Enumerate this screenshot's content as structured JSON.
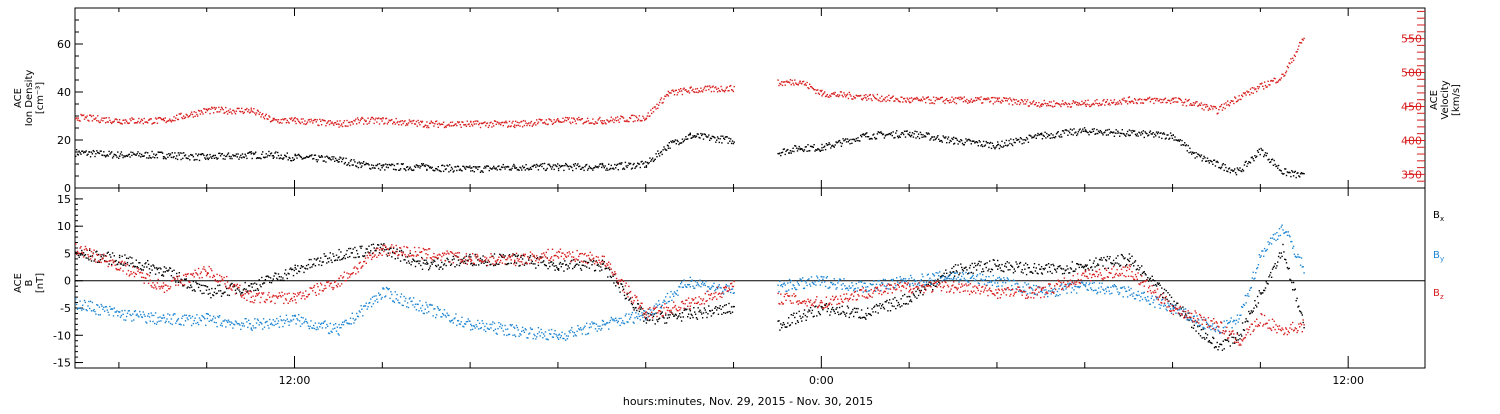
{
  "chart_data": [
    {
      "type": "scatter",
      "panel": "plasma",
      "ylabel_lines": [
        "ACE",
        "Ion Density",
        "[cm⁻³]"
      ],
      "ylabel_right_lines": [
        "ACE",
        "Velocity",
        "[km/s]"
      ],
      "ylim": [
        0,
        75
      ],
      "y_ticks": [
        "0",
        "20",
        "40",
        "60"
      ],
      "y2lim": [
        330,
        595
      ],
      "y2_ticks": [
        "350",
        "400",
        "450",
        "500",
        "550"
      ],
      "series": [
        {
          "name": "",
          "axis": "left",
          "color": "#000000",
          "x": [
            7.0,
            8,
            9,
            10,
            11,
            11.5,
            12,
            13,
            13.5,
            14,
            15,
            16,
            17,
            18,
            19,
            20,
            20.5,
            21,
            22,
            23,
            23.5,
            24.0,
            25,
            26,
            27,
            28,
            29,
            30,
            31,
            32,
            32.5,
            33,
            33.5,
            34,
            34.5,
            35.0
          ],
          "y": [
            15,
            14,
            14,
            13,
            14,
            14,
            13,
            12,
            10,
            9,
            9,
            8,
            9,
            9,
            9,
            10,
            18,
            22,
            20,
            15,
            17,
            17,
            22,
            23,
            20,
            18,
            22,
            24,
            23,
            22,
            14,
            10,
            7,
            16,
            7,
            5
          ]
        },
        {
          "name": "",
          "axis": "right",
          "color": "#d81e1e",
          "x": [
            7.0,
            8,
            9,
            10,
            11,
            11.5,
            12,
            13,
            13.5,
            14,
            15,
            16,
            17,
            18,
            19,
            20,
            20.5,
            21,
            22,
            23,
            23.5,
            24.0,
            25,
            26,
            27,
            28,
            29,
            30,
            31,
            32,
            32.5,
            33,
            33.5,
            34,
            34.5,
            35.0
          ],
          "y": [
            435,
            430,
            430,
            445,
            445,
            430,
            430,
            425,
            430,
            430,
            425,
            425,
            425,
            430,
            430,
            435,
            470,
            475,
            478,
            485,
            488,
            470,
            465,
            460,
            460,
            460,
            455,
            455,
            460,
            460,
            455,
            445,
            465,
            480,
            495,
            555
          ]
        }
      ]
    },
    {
      "type": "scatter",
      "panel": "magnetic",
      "ylabel_lines": [
        "ACE",
        "B",
        "[nT]"
      ],
      "ylim": [
        -16,
        17
      ],
      "y_ticks": [
        "-15",
        "-10",
        "-5",
        "0",
        "5",
        "10",
        "15"
      ],
      "xlabel": "hours:minutes, Nov. 29, 2015 - Nov. 30, 2015",
      "x_range_hours": [
        7.0,
        37.75
      ],
      "x_tick_labels": [
        {
          "hour": 12,
          "label": "12:00"
        },
        {
          "hour": 24,
          "label": "0:00"
        },
        {
          "hour": 36,
          "label": "12:00"
        }
      ],
      "legend_position": "right",
      "series": [
        {
          "name": "Bx",
          "name_main": "B",
          "name_sub": "x",
          "color": "#000000",
          "x": [
            7.0,
            8,
            9,
            10,
            11,
            12,
            13,
            14,
            15,
            16,
            17,
            18,
            19,
            20,
            21,
            22,
            23,
            24.0,
            25,
            26,
            27,
            28,
            29,
            30,
            31,
            32,
            33,
            33.5,
            34,
            34.5,
            35.0
          ],
          "y": [
            5,
            4,
            2,
            -2,
            -1,
            2,
            5,
            6,
            3,
            4,
            4,
            3,
            3,
            -7,
            -6,
            -5,
            -8,
            -5,
            -6,
            -3,
            2,
            3,
            2,
            3,
            4,
            -4,
            -12,
            -10,
            -2,
            6,
            -9
          ]
        },
        {
          "name": "By",
          "name_main": "B",
          "name_sub": "y",
          "color": "#1f86d3",
          "x": [
            7.0,
            8,
            9,
            10,
            11,
            12,
            13,
            14,
            15,
            16,
            17,
            18,
            19,
            20,
            21,
            22,
            23,
            24.0,
            25,
            26,
            27,
            28,
            29,
            30,
            31,
            32,
            33,
            33.5,
            34,
            34.5,
            35.0
          ],
          "y": [
            -4,
            -6,
            -7,
            -7,
            -8,
            -7,
            -9,
            -2,
            -5,
            -8,
            -9,
            -10,
            -8,
            -6,
            0,
            -2,
            -1,
            0,
            -1,
            0,
            1,
            0,
            -2,
            -1,
            -2,
            -5,
            -9,
            -7,
            5,
            10,
            2
          ]
        },
        {
          "name": "Bz",
          "name_main": "B",
          "name_sub": "z",
          "color": "#d81e1e",
          "x": [
            7.0,
            8,
            9,
            10,
            11,
            12,
            13,
            14,
            15,
            16,
            17,
            18,
            19,
            20,
            21,
            22,
            23,
            24.0,
            25,
            26,
            27,
            28,
            29,
            30,
            31,
            32,
            33,
            33.5,
            34,
            34.5,
            35.0
          ],
          "y": [
            6,
            3,
            -1,
            2,
            -3,
            -3,
            0,
            6,
            5,
            4,
            4,
            5,
            4,
            -6,
            -4,
            -1,
            -3,
            -4,
            -2,
            -1,
            -1,
            -2,
            -2,
            1,
            2,
            -5,
            -8,
            -11,
            -7,
            -9,
            -8
          ]
        }
      ]
    }
  ]
}
